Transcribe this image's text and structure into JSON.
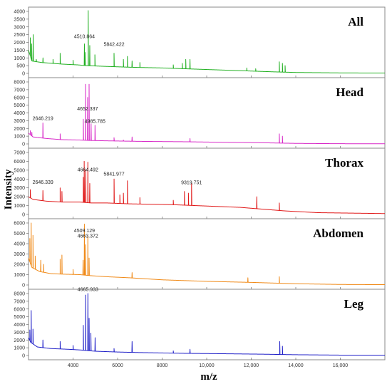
{
  "chart_data": {
    "type": "line",
    "xlabel": "m/z",
    "ylabel": "Intensity",
    "xlim": [
      2000,
      18000
    ],
    "x_ticks": [
      "4000",
      "6000",
      "8000",
      "10,000",
      "12,000",
      "14,000",
      "16,000"
    ],
    "x_tick_values": [
      4000,
      6000,
      8000,
      10000,
      12000,
      14000,
      16000
    ],
    "panels": [
      {
        "title": "All",
        "color": "#22b022",
        "ylim": [
          0,
          4000
        ],
        "y_ticks": [
          "0",
          "500",
          "1000",
          "1500",
          "2000",
          "2500",
          "3000",
          "3500",
          "4000"
        ],
        "baseline": [
          [
            2000,
            1500
          ],
          [
            2150,
            800
          ],
          [
            2600,
            700
          ],
          [
            3500,
            600
          ],
          [
            4200,
            550
          ],
          [
            4600,
            500
          ],
          [
            5500,
            450
          ],
          [
            6500,
            400
          ],
          [
            8000,
            350
          ],
          [
            9000,
            300
          ],
          [
            10000,
            250
          ],
          [
            12000,
            150
          ],
          [
            13000,
            100
          ],
          [
            14000,
            60
          ],
          [
            16000,
            30
          ],
          [
            18000,
            20
          ]
        ],
        "peaks": [
          [
            2080,
            2300
          ],
          [
            2140,
            1900
          ],
          [
            2210,
            2500
          ],
          [
            2350,
            900
          ],
          [
            2650,
            1000
          ],
          [
            3100,
            900
          ],
          [
            3420,
            1300
          ],
          [
            4000,
            850
          ],
          [
            4510,
            1900
          ],
          [
            4540,
            1350
          ],
          [
            4680,
            4050
          ],
          [
            4750,
            1800
          ],
          [
            4980,
            1200
          ],
          [
            5840,
            1300
          ],
          [
            6260,
            900
          ],
          [
            6440,
            1100
          ],
          [
            6650,
            800
          ],
          [
            7000,
            700
          ],
          [
            8500,
            550
          ],
          [
            8900,
            650
          ],
          [
            9060,
            900
          ],
          [
            9250,
            900
          ],
          [
            11800,
            350
          ],
          [
            12200,
            300
          ],
          [
            13260,
            750
          ],
          [
            13400,
            650
          ],
          [
            13520,
            500
          ]
        ],
        "labels": [
          {
            "text": "4510.864",
            "x": 4510,
            "y": 2270
          },
          {
            "text": "5842.422",
            "x": 5842,
            "y": 1780
          }
        ]
      },
      {
        "title": "Head",
        "color": "#d82ac8",
        "ylim": [
          0,
          8000
        ],
        "y_ticks": [
          "0",
          "1000",
          "2000",
          "3000",
          "4000",
          "5000",
          "6000",
          "7000",
          "8000"
        ],
        "baseline": [
          [
            2000,
            1400
          ],
          [
            2200,
            900
          ],
          [
            2800,
            700
          ],
          [
            3500,
            550
          ],
          [
            4300,
            500
          ],
          [
            4700,
            450
          ],
          [
            5500,
            400
          ],
          [
            7000,
            330
          ],
          [
            9000,
            280
          ],
          [
            11000,
            200
          ],
          [
            12500,
            150
          ],
          [
            14000,
            70
          ],
          [
            16000,
            30
          ],
          [
            18000,
            20
          ]
        ],
        "peaks": [
          [
            2080,
            1700
          ],
          [
            2150,
            1500
          ],
          [
            2646,
            2700
          ],
          [
            3420,
            1300
          ],
          [
            4460,
            3200
          ],
          [
            4560,
            7700
          ],
          [
            4655,
            6000
          ],
          [
            4720,
            7700
          ],
          [
            4810,
            2600
          ],
          [
            4986,
            2400
          ],
          [
            5840,
            800
          ],
          [
            6260,
            500
          ],
          [
            6650,
            900
          ],
          [
            9250,
            700
          ],
          [
            13260,
            1300
          ],
          [
            13400,
            1000
          ]
        ],
        "labels": [
          {
            "text": "2646.219",
            "x": 2646,
            "y": 3100
          },
          {
            "text": "4652.337",
            "x": 4652,
            "y": 4300
          },
          {
            "text": "4985.785",
            "x": 4985,
            "y": 2700
          }
        ]
      },
      {
        "title": "Thorax",
        "color": "#e01818",
        "ylim": [
          0,
          7000
        ],
        "y_ticks": [
          "0",
          "1000",
          "2000",
          "3000",
          "4000",
          "5000",
          "6000",
          "7000"
        ],
        "baseline": [
          [
            2000,
            2000
          ],
          [
            2200,
            1700
          ],
          [
            2800,
            1500
          ],
          [
            3500,
            1400
          ],
          [
            4300,
            1400
          ],
          [
            4800,
            1300
          ],
          [
            5500,
            1300
          ],
          [
            6500,
            1200
          ],
          [
            7500,
            1150
          ],
          [
            8500,
            1100
          ],
          [
            9500,
            1000
          ],
          [
            10500,
            900
          ],
          [
            11500,
            800
          ],
          [
            12500,
            600
          ],
          [
            13500,
            400
          ],
          [
            15000,
            200
          ],
          [
            18000,
            100
          ]
        ],
        "peaks": [
          [
            2080,
            2800
          ],
          [
            2646,
            2700
          ],
          [
            3420,
            3000
          ],
          [
            3500,
            2600
          ],
          [
            4460,
            4200
          ],
          [
            4500,
            6000
          ],
          [
            4570,
            5000
          ],
          [
            4664,
            5900
          ],
          [
            4750,
            3500
          ],
          [
            5842,
            4000
          ],
          [
            6100,
            2200
          ],
          [
            6260,
            2400
          ],
          [
            6440,
            3800
          ],
          [
            7000,
            1900
          ],
          [
            8500,
            1600
          ],
          [
            9000,
            2600
          ],
          [
            9180,
            2400
          ],
          [
            9320,
            3500
          ],
          [
            12250,
            2000
          ],
          [
            13260,
            1300
          ]
        ],
        "labels": [
          {
            "text": "2646.339",
            "x": 2646,
            "y": 3450
          },
          {
            "text": "4664.492",
            "x": 4664,
            "y": 4850
          },
          {
            "text": "5841.977",
            "x": 5841,
            "y": 4400
          },
          {
            "text": "9319.751",
            "x": 9319,
            "y": 3400
          }
        ]
      },
      {
        "title": "Abdomen",
        "color": "#f08a18",
        "ylim": [
          0,
          6000
        ],
        "y_ticks": [
          "0",
          "1000",
          "2000",
          "3000",
          "4000",
          "5000",
          "6000"
        ],
        "baseline": [
          [
            2000,
            2600
          ],
          [
            2150,
            1700
          ],
          [
            2500,
            1300
          ],
          [
            3000,
            1100
          ],
          [
            3500,
            1050
          ],
          [
            4300,
            1000
          ],
          [
            4800,
            900
          ],
          [
            5500,
            800
          ],
          [
            6500,
            700
          ],
          [
            8000,
            500
          ],
          [
            10000,
            350
          ],
          [
            12000,
            250
          ],
          [
            14000,
            120
          ],
          [
            16000,
            50
          ],
          [
            18000,
            30
          ]
        ],
        "peaks": [
          [
            2060,
            4500
          ],
          [
            2120,
            6000
          ],
          [
            2200,
            4800
          ],
          [
            2300,
            2800
          ],
          [
            2550,
            2400
          ],
          [
            2680,
            2000
          ],
          [
            3420,
            2500
          ],
          [
            3500,
            2900
          ],
          [
            4000,
            1500
          ],
          [
            4450,
            2400
          ],
          [
            4509,
            5900
          ],
          [
            4560,
            3900
          ],
          [
            4663,
            4700
          ],
          [
            4720,
            2600
          ],
          [
            6650,
            1200
          ],
          [
            11850,
            700
          ],
          [
            13260,
            800
          ]
        ],
        "labels": [
          {
            "text": "4509.129",
            "x": 4509,
            "y": 5100
          },
          {
            "text": "4663.372",
            "x": 4663,
            "y": 4600
          }
        ]
      },
      {
        "title": "Leg",
        "color": "#2020c8",
        "ylim": [
          0,
          8000
        ],
        "y_ticks": [
          "0",
          "1000",
          "2000",
          "3000",
          "4000",
          "5000",
          "6000",
          "7000",
          "8000"
        ],
        "baseline": [
          [
            2000,
            2300
          ],
          [
            2100,
            1700
          ],
          [
            2400,
            1100
          ],
          [
            3000,
            900
          ],
          [
            3800,
            800
          ],
          [
            4400,
            700
          ],
          [
            5000,
            550
          ],
          [
            6000,
            450
          ],
          [
            7000,
            380
          ],
          [
            8000,
            330
          ],
          [
            9000,
            280
          ],
          [
            11000,
            220
          ],
          [
            12500,
            170
          ],
          [
            14000,
            100
          ],
          [
            16000,
            50
          ],
          [
            18000,
            40
          ]
        ],
        "peaks": [
          [
            2060,
            3300
          ],
          [
            2120,
            5800
          ],
          [
            2200,
            3400
          ],
          [
            2646,
            2000
          ],
          [
            3420,
            1800
          ],
          [
            4000,
            1300
          ],
          [
            4460,
            3900
          ],
          [
            4560,
            7800
          ],
          [
            4666,
            8000
          ],
          [
            4720,
            4800
          ],
          [
            4800,
            2900
          ],
          [
            4990,
            2300
          ],
          [
            5840,
            900
          ],
          [
            6650,
            1800
          ],
          [
            8500,
            600
          ],
          [
            9250,
            800
          ],
          [
            13280,
            1800
          ],
          [
            13400,
            1200
          ]
        ],
        "labels": [
          {
            "text": "4665.933",
            "x": 4665,
            "y": 8300
          }
        ]
      }
    ]
  }
}
